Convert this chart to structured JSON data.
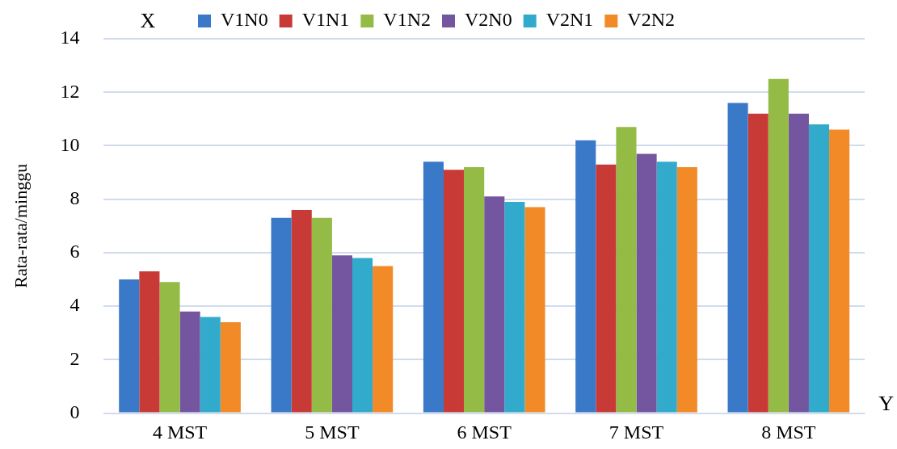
{
  "chart_data": {
    "type": "bar",
    "ylabel": "Rata-rata/minggu",
    "categories": [
      "4 MST",
      "5 MST",
      "6 MST",
      "7 MST",
      "8 MST"
    ],
    "series": [
      {
        "name": "V1N0",
        "color": "#3a78c8",
        "values": [
          5.0,
          7.3,
          9.4,
          10.2,
          11.6
        ]
      },
      {
        "name": "V1N1",
        "color": "#c83a36",
        "values": [
          5.3,
          7.6,
          9.1,
          9.3,
          11.2
        ]
      },
      {
        "name": "V1N2",
        "color": "#93bb45",
        "values": [
          4.9,
          7.3,
          9.2,
          10.7,
          12.5
        ]
      },
      {
        "name": "V2N0",
        "color": "#7456a0",
        "values": [
          3.8,
          5.9,
          8.1,
          9.7,
          11.2
        ]
      },
      {
        "name": "V2N1",
        "color": "#31aacb",
        "values": [
          3.6,
          5.8,
          7.9,
          9.4,
          10.8
        ]
      },
      {
        "name": "V2N2",
        "color": "#f28a28",
        "values": [
          3.4,
          5.5,
          7.7,
          9.2,
          10.6
        ]
      }
    ],
    "ylim": [
      0,
      14
    ],
    "yticks": [
      0,
      2,
      4,
      6,
      8,
      10,
      12,
      14
    ],
    "grid": "y",
    "legend": "top",
    "annotations": [
      "X",
      "Y"
    ]
  }
}
